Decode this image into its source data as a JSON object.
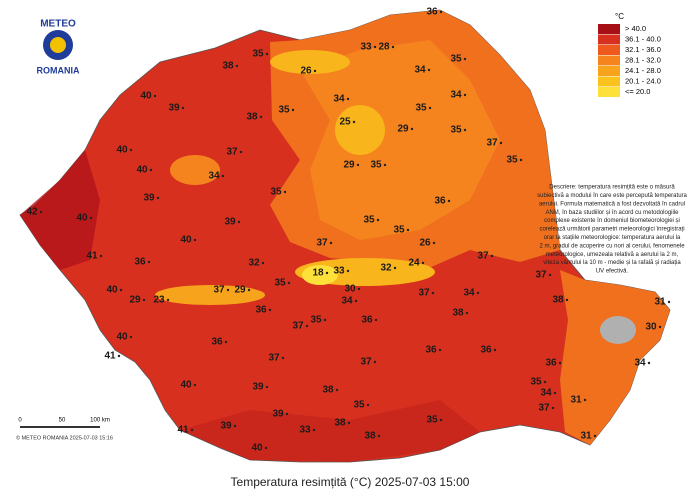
{
  "logo": {
    "top": "METEO",
    "bottom": "ROMANIA"
  },
  "title": "Temperatura resimțită (°C) 2025-07-03 15:00",
  "legend": {
    "unit": "°C",
    "position": "top-right",
    "items": [
      {
        "label": "> 40.0",
        "color": "#a50f15"
      },
      {
        "label": "36.1 - 40.0",
        "color": "#d7301f"
      },
      {
        "label": "32.1 - 36.0",
        "color": "#ee5a1e"
      },
      {
        "label": "28.1 - 32.0",
        "color": "#f5841f"
      },
      {
        "label": "24.1 - 28.0",
        "color": "#f7a41c"
      },
      {
        "label": "20.1 - 24.0",
        "color": "#fac21d"
      },
      {
        "label": "<= 20.0",
        "color": "#fde13a"
      }
    ]
  },
  "description": [
    "Descriere: temperatura resimțită este o măsură",
    "subiectivă a modului în care este percepută temperatura",
    "aerului. Formula matematică a fost dezvoltată în cadrul",
    "ANM, în baza studiilor și în acord cu metodologiile",
    "complexe existente în domeniul biometeorologiei și",
    "corelează următorii parametri meteorologici înregistrați",
    "orar la stațiile meteorologice: temperatura aerului la",
    "2 m, gradul de acoperire cu nori al cerului, fenomenele",
    "meteorologice, umezeala relativă a aerului la 2 m,",
    "viteza vântului la 10 m - medie și la rafală și radiația",
    "UV efectivă."
  ],
  "scale": {
    "ticks": [
      "0",
      "50",
      "100 km"
    ],
    "copyright": "© METEO ROMANIA 2025-07-03 15:16"
  },
  "labels": [
    36,
    35,
    26,
    33,
    28,
    35,
    34,
    38,
    34,
    34,
    35,
    35,
    40,
    39,
    38,
    25,
    29,
    35,
    37,
    37,
    40,
    40,
    34,
    29,
    35,
    35,
    35,
    39,
    36,
    39,
    35,
    35,
    42,
    40,
    40,
    37,
    26,
    41,
    36,
    32,
    18,
    33,
    32,
    24,
    37,
    37,
    40,
    29,
    23,
    37,
    29,
    35,
    30,
    34,
    37,
    34,
    38,
    31,
    30,
    36,
    37,
    35,
    36,
    38,
    40,
    36,
    37,
    37,
    36,
    36,
    36,
    34,
    41,
    40,
    39,
    38,
    35,
    34,
    31,
    37,
    41,
    39,
    39,
    38,
    35,
    31,
    40,
    38,
    33,
    35
  ]
}
